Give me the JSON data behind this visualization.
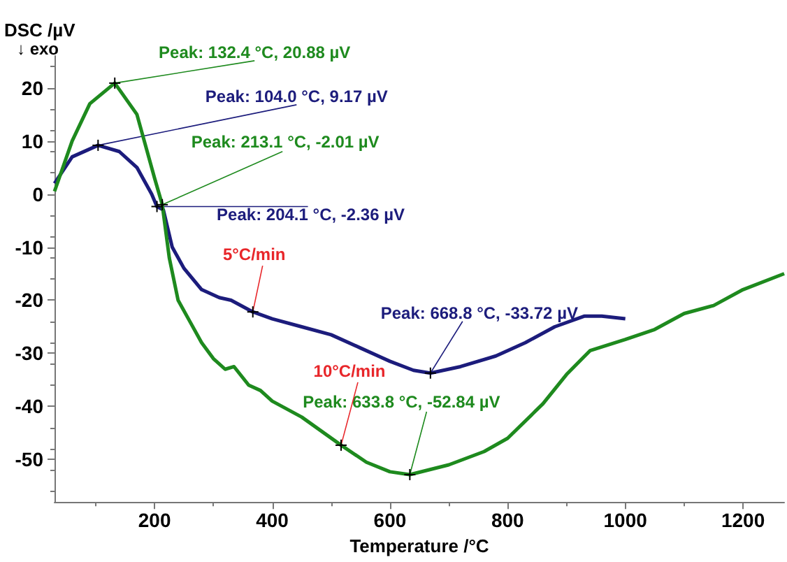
{
  "chart_data": {
    "type": "line",
    "xlabel": "Temperature /°C",
    "ylabel": "DSC /µV",
    "xlim": [
      30,
      1270
    ],
    "ylim": [
      -58,
      26
    ],
    "xticks": [
      200,
      400,
      600,
      800,
      1000,
      1200
    ],
    "yticks": [
      -50,
      -40,
      -30,
      -20,
      -10,
      0,
      10,
      20
    ],
    "grid": false,
    "legend": false,
    "marker": "none",
    "line_style": "solid",
    "series": [
      {
        "name": "5°C/min",
        "color": "#1c1c7c",
        "x": [
          30,
          60,
          104,
          140,
          170,
          195,
          204.1,
          215,
          230,
          250,
          280,
          310,
          330,
          367,
          400,
          450,
          500,
          550,
          600,
          640,
          668.8,
          720,
          780,
          830,
          880,
          930,
          960,
          1000
        ],
        "values": [
          2,
          7,
          9.17,
          8,
          5,
          0,
          -2.36,
          -3,
          -10,
          -14,
          -18,
          -19.5,
          -20,
          -22.2,
          -23.5,
          -25,
          -26.5,
          -29,
          -31.5,
          -33.2,
          -33.72,
          -32.5,
          -30.5,
          -28,
          -25,
          -23,
          -23,
          -23.5
        ]
      },
      {
        "name": "10°C/min",
        "color": "#1e8a1e",
        "x": [
          30,
          60,
          90,
          132.4,
          170,
          200,
          213.1,
          225,
          240,
          260,
          280,
          300,
          320,
          335,
          360,
          380,
          400,
          450,
          517,
          560,
          600,
          633.8,
          700,
          760,
          800,
          860,
          900,
          940,
          1000,
          1050,
          1100,
          1150,
          1200,
          1270
        ],
        "values": [
          0.5,
          10,
          17,
          20.88,
          15,
          3,
          -2.01,
          -12,
          -20,
          -24,
          -28,
          -31,
          -33,
          -32.5,
          -36,
          -37,
          -39,
          -42,
          -47.3,
          -50.5,
          -52.3,
          -52.84,
          -51,
          -48.5,
          -46,
          -39.5,
          -34,
          -29.5,
          -27.4,
          -25.5,
          -22.5,
          -21,
          -18,
          -15
        ]
      }
    ],
    "annotations": [
      "↓ exo",
      {
        "text": "Peak: 132.4 °C, 20.88 µV",
        "x": 132.4,
        "y": 20.88
      },
      {
        "text": "Peak: 104.0 °C, 9.17 µV",
        "x": 104,
        "y": 9.17
      },
      {
        "text": "Peak: 213.1 °C, -2.01 µV",
        "x": 213.1,
        "y": -2.01
      },
      {
        "text": "Peak: 204.1 °C, -2.36 µV",
        "x": 204.1,
        "y": -2.36
      },
      {
        "text": "Peak: 668.8 °C, -33.72 µV",
        "x": 668.8,
        "y": -33.72
      },
      {
        "text": "Peak: 633.8 °C, -52.84 µV",
        "x": 633.8,
        "y": -52.84
      }
    ]
  }
}
